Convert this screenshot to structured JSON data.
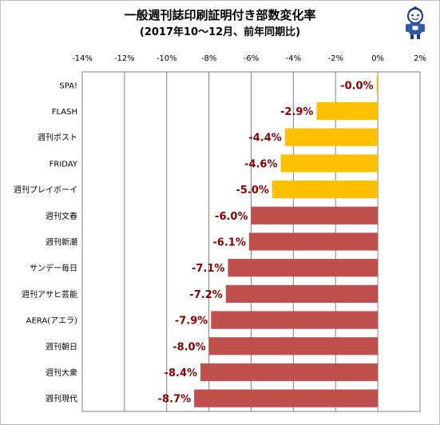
{
  "chart_data": {
    "type": "bar",
    "orientation": "horizontal",
    "title": "一般週刊誌印刷証明付き部数変化率",
    "subtitle": "(2017年10～12月、前年同期比)",
    "xlim": [
      -14,
      2
    ],
    "xticks": [
      "-14%",
      "-12%",
      "-10%",
      "-8%",
      "-6%",
      "-4%",
      "-2%",
      "0%",
      "2%"
    ],
    "xtick_values": [
      -14,
      -12,
      -10,
      -8,
      -6,
      -4,
      -2,
      0,
      2
    ],
    "grid": "vertical",
    "categories": [
      "SPA!",
      "FLASH",
      "週刊ポスト",
      "FRIDAY",
      "週刊プレイボーイ",
      "週刊文春",
      "週刊新潮",
      "サンデー毎日",
      "週刊アサヒ芸能",
      "AERA(アエラ)",
      "週刊朝日",
      "週刊大衆",
      "週刊現代"
    ],
    "values": [
      -0.03,
      -2.9,
      -4.4,
      -4.6,
      -5.0,
      -6.0,
      -6.1,
      -7.1,
      -7.2,
      -7.9,
      -8.0,
      -8.4,
      -8.7
    ],
    "data_labels": [
      "-0.0%",
      "-2.9%",
      "-4.4%",
      "-4.6%",
      "-5.0%",
      "-6.0%",
      "-6.1%",
      "-7.1%",
      "-7.2%",
      "-7.9%",
      "-8.0%",
      "-8.4%",
      "-8.7%"
    ],
    "bar_colors": [
      "#ffc000",
      "#ffc000",
      "#ffc000",
      "#ffc000",
      "#ffc000",
      "#c0504d",
      "#c0504d",
      "#c0504d",
      "#c0504d",
      "#c0504d",
      "#c0504d",
      "#c0504d",
      "#c0504d"
    ],
    "label_color": "#8b0000"
  },
  "mascot_icon": "mascot-icon"
}
